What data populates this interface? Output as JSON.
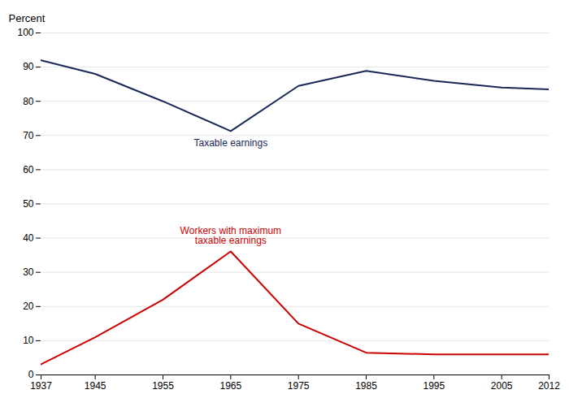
{
  "chart_data": {
    "type": "line",
    "y_label": "Percent",
    "x": [
      1937,
      1945,
      1955,
      1965,
      1975,
      1985,
      1995,
      2005,
      2012
    ],
    "series": [
      {
        "name": "Taxable earnings",
        "color": "#1a2857",
        "values": [
          92.0,
          88.0,
          80.0,
          71.3,
          84.5,
          88.9,
          86.0,
          84.0,
          83.5
        ]
      },
      {
        "name": "Workers with maximum\ntaxable earnings",
        "color": "#cc0000",
        "values": [
          3.1,
          11.0,
          22.0,
          36.1,
          15.0,
          6.5,
          6.0,
          6.0,
          6.0
        ]
      }
    ],
    "xlim": [
      1937,
      2012
    ],
    "xticks": [
      1937,
      1945,
      1955,
      1965,
      1975,
      1985,
      1995,
      2005,
      2012
    ],
    "ylim": [
      0,
      100
    ],
    "yticks": [
      0,
      10,
      20,
      30,
      40,
      50,
      60,
      70,
      80,
      90,
      100
    ],
    "grid": true
  }
}
